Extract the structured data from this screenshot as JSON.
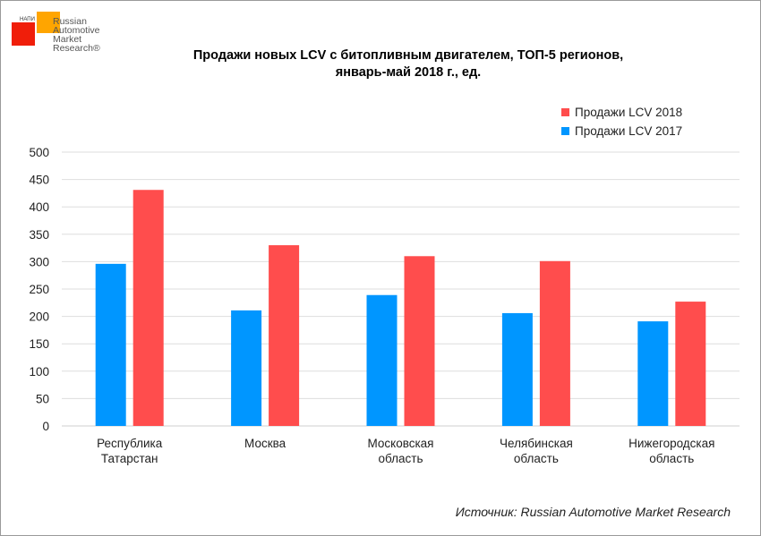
{
  "logo": {
    "text": "Russian Automotive Market Research®",
    "small": "НАПИ"
  },
  "source": "Источник: Russian Automotive Market Research",
  "chart_data": {
    "type": "bar",
    "title": "Продажи новых LCV с битопливным двигателем, ТОП-5 регионов, январь-май 2018 г., ед.",
    "title_lines": [
      "Продажи новых LCV с битопливным двигателем, ТОП-5 регионов,",
      "январь-май 2018 г., ед."
    ],
    "categories": [
      [
        "Республика",
        "Татарстан"
      ],
      [
        "Москва"
      ],
      [
        "Московская",
        "область"
      ],
      [
        "Челябинская",
        "область"
      ],
      [
        "Нижегородская",
        "область"
      ]
    ],
    "series": [
      {
        "name": "Продажи LCV 2017",
        "color": "#0096ff",
        "values": [
          296,
          211,
          239,
          206,
          191
        ]
      },
      {
        "name": "Продажи LCV 2018",
        "color": "#ff4d4d",
        "values": [
          431,
          330,
          310,
          301,
          227
        ]
      }
    ],
    "ylim": [
      0,
      500
    ],
    "yticks": [
      0,
      50,
      100,
      150,
      200,
      250,
      300,
      350,
      400,
      450,
      500
    ],
    "grid": true,
    "legend": "top-right"
  }
}
